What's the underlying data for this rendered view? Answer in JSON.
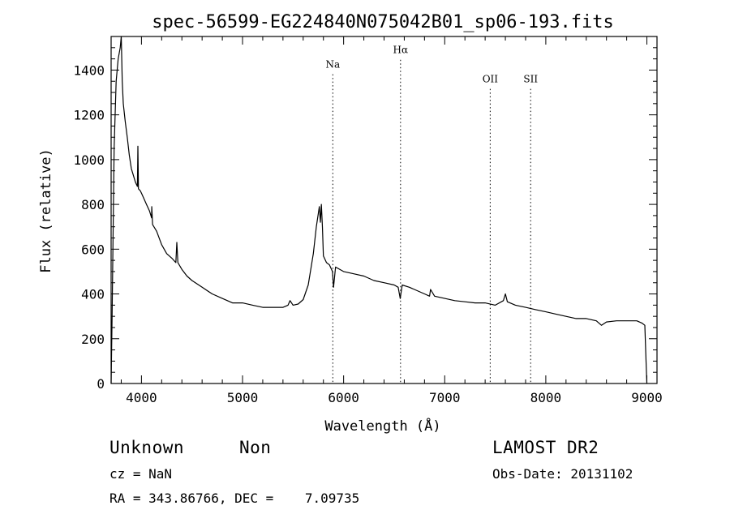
{
  "chart_data": {
    "type": "line",
    "title": "spec-56599-EG224840N075042B01_sp06-193.fits",
    "xlabel": "Wavelength (Å)",
    "ylabel": "Flux (relative)",
    "xlim": [
      3700,
      9100
    ],
    "ylim": [
      0,
      1550
    ],
    "x_ticks": [
      4000,
      5000,
      6000,
      7000,
      8000,
      9000
    ],
    "y_ticks": [
      0,
      200,
      400,
      600,
      800,
      1000,
      1200,
      1400
    ],
    "grid": false,
    "series": [
      {
        "x": [
          3700,
          3710,
          3730,
          3750,
          3770,
          3790,
          3800,
          3810,
          3820,
          3840,
          3860,
          3880,
          3900,
          3920,
          3940,
          3960,
          3965,
          3970,
          3990,
          4000,
          4020,
          4050,
          4080,
          4100,
          4102,
          4110,
          4150,
          4200,
          4250,
          4300,
          4340,
          4350,
          4360,
          4400,
          4450,
          4500,
          4600,
          4700,
          4800,
          4900,
          5000,
          5100,
          5200,
          5300,
          5400,
          5450,
          5470,
          5500,
          5550,
          5600,
          5650,
          5700,
          5730,
          5760,
          5770,
          5780,
          5790,
          5800,
          5830,
          5860,
          5890,
          5900,
          5920,
          6000,
          6100,
          6200,
          6300,
          6400,
          6500,
          6540,
          6560,
          6580,
          6650,
          6700,
          6800,
          6850,
          6860,
          6900,
          7000,
          7100,
          7200,
          7300,
          7400,
          7500,
          7580,
          7600,
          7620,
          7700,
          7800,
          7900,
          8000,
          8100,
          8200,
          8300,
          8400,
          8500,
          8550,
          8600,
          8700,
          8800,
          8900,
          8950,
          8980,
          8990,
          9000
        ],
        "y": [
          0,
          300,
          1050,
          1350,
          1450,
          1500,
          1550,
          1350,
          1250,
          1170,
          1100,
          1020,
          960,
          930,
          900,
          880,
          1060,
          870,
          860,
          850,
          830,
          800,
          770,
          740,
          790,
          710,
          680,
          620,
          580,
          560,
          540,
          630,
          540,
          510,
          480,
          460,
          430,
          400,
          380,
          360,
          360,
          350,
          340,
          340,
          340,
          350,
          370,
          350,
          355,
          375,
          440,
          580,
          700,
          790,
          720,
          800,
          700,
          570,
          540,
          530,
          500,
          430,
          520,
          500,
          490,
          480,
          460,
          450,
          440,
          430,
          380,
          440,
          430,
          420,
          400,
          390,
          420,
          390,
          380,
          370,
          365,
          360,
          360,
          350,
          370,
          400,
          365,
          350,
          340,
          330,
          320,
          310,
          300,
          290,
          290,
          280,
          260,
          275,
          280,
          280,
          280,
          270,
          260,
          120,
          0
        ]
      }
    ],
    "annotations": [
      {
        "label": "Na",
        "x": 5893,
        "y": 1410
      },
      {
        "label": "Hα",
        "x": 6563,
        "y": 1475
      },
      {
        "label": "OII",
        "x": 7450,
        "y": 1345
      },
      {
        "label": "SII",
        "x": 7850,
        "y": 1345
      }
    ]
  },
  "footer": {
    "object_type": "Unknown",
    "object_subtype": "Non",
    "survey": "LAMOST DR2",
    "cz": "cz = NaN",
    "obs_date": "Obs-Date: 20131102",
    "coords": "RA = 343.86766, DEC =    7.09735"
  }
}
